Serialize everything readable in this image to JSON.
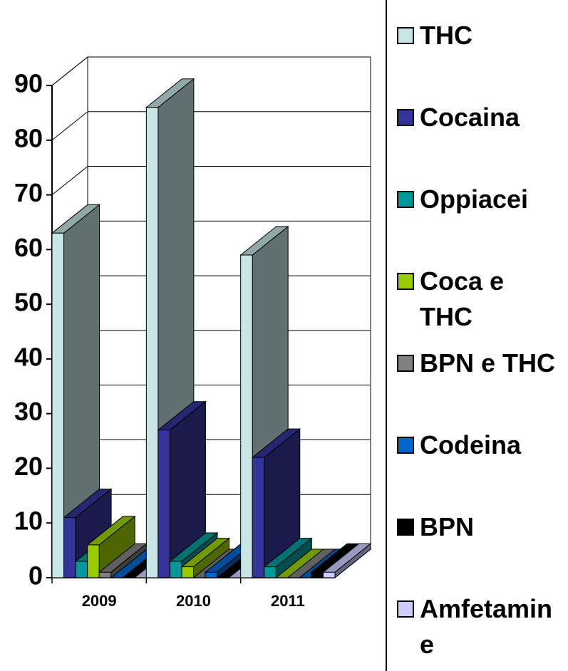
{
  "chart_data": {
    "type": "bar3d",
    "categories": [
      "2009",
      "2010",
      "2011"
    ],
    "series": [
      {
        "name": "THC",
        "color": "#c8e6e6",
        "values": [
          63,
          86,
          59
        ]
      },
      {
        "name": "Cocaina",
        "color": "#333399",
        "values": [
          11,
          27,
          22
        ]
      },
      {
        "name": "Oppiacei",
        "color": "#009999",
        "values": [
          3,
          3,
          2
        ]
      },
      {
        "name": "Coca e THC",
        "color": "#99cc00",
        "values": [
          6,
          2,
          0
        ]
      },
      {
        "name": "BPN e THC",
        "color": "#808080",
        "values": [
          1,
          0,
          0
        ]
      },
      {
        "name": "Codeina",
        "color": "#0066cc",
        "values": [
          0,
          1,
          0
        ]
      },
      {
        "name": "BPN",
        "color": "#000000",
        "values": [
          0,
          0,
          1
        ]
      },
      {
        "name": "Amfetamine",
        "color": "#ccccff",
        "values": [
          0,
          0,
          1
        ]
      }
    ],
    "ylim": [
      0,
      90
    ],
    "yticks": [
      0,
      10,
      20,
      30,
      40,
      50,
      60,
      70,
      80,
      90
    ],
    "grid": true
  }
}
